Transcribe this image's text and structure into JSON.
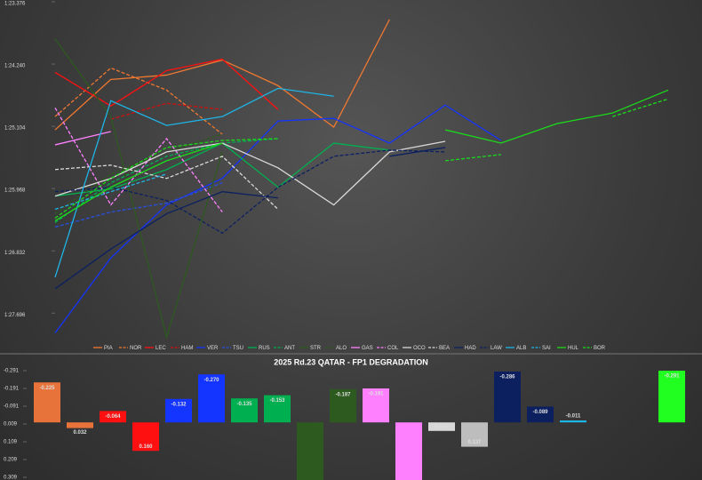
{
  "chart_data": [
    {
      "type": "line",
      "x": [
        1,
        2,
        3,
        4,
        5,
        6,
        7,
        8,
        9,
        10,
        11,
        12
      ],
      "xlim": [
        1,
        12
      ],
      "ylim": [
        83.376,
        88.1
      ],
      "y_reversed": true,
      "yticks": [
        {
          "value": 83.376,
          "label": "1:23.376"
        },
        {
          "value": 84.24,
          "label": "1:24.240"
        },
        {
          "value": 85.104,
          "label": "1:25.104"
        },
        {
          "value": 85.968,
          "label": "1:25.968"
        },
        {
          "value": 86.832,
          "label": "1:26.832"
        },
        {
          "value": 87.696,
          "label": "1:27.696"
        }
      ],
      "legend": "bottom",
      "series": [
        {
          "name": "PIA",
          "color": "#f07830",
          "dash": false,
          "values": [
            85.153,
            84.454,
            84.393,
            84.185,
            84.54,
            85.116,
            83.621,
            null,
            null,
            null,
            null,
            null
          ]
        },
        {
          "name": "NOR",
          "color": "#f07830",
          "dash": true,
          "values": [
            84.969,
            84.295,
            84.601,
            85.214,
            null,
            null,
            null,
            null,
            null,
            null,
            null,
            null
          ]
        },
        {
          "name": "LEC",
          "color": "#ff1010",
          "dash": false,
          "values": [
            84.356,
            84.822,
            84.332,
            84.173,
            84.871,
            null,
            null,
            null,
            null,
            null,
            null,
            null
          ]
        },
        {
          "name": "HAM",
          "color": "#d01010",
          "dash": true,
          "values": [
            null,
            85.006,
            84.785,
            84.871,
            null,
            null,
            null,
            null,
            null,
            null,
            null,
            null
          ]
        },
        {
          "name": "VER",
          "color": "#1434ff",
          "dash": false,
          "values": [
            87.972,
            86.93,
            86.195,
            85.827,
            85.03,
            84.994,
            85.337,
            84.81,
            85.3,
            null,
            null,
            null
          ]
        },
        {
          "name": "TSU",
          "color": "#2850e0",
          "dash": true,
          "values": [
            86.501,
            86.293,
            86.17,
            85.888,
            null,
            null,
            null,
            null,
            null,
            null,
            null,
            null
          ]
        },
        {
          "name": "RUS",
          "color": "#00b050",
          "dash": false,
          "values": [
            86.072,
            85.974,
            85.704,
            85.337,
            85.949,
            85.337,
            85.435,
            null,
            null,
            null,
            null,
            null
          ]
        },
        {
          "name": "ANT",
          "color": "#00b050",
          "dash": true,
          "values": [
            86.44,
            85.888,
            85.52,
            85.337,
            85.275,
            null,
            null,
            null,
            null,
            null,
            null,
            null
          ]
        },
        {
          "name": "STR",
          "color": "#2d5a1e",
          "dash": false,
          "values": [
            83.891,
            84.969,
            88.033,
            85.459,
            null,
            null,
            null,
            null,
            null,
            null,
            null,
            null
          ]
        },
        {
          "name": "ALO",
          "color": "#2d5a1e",
          "dash": true,
          "values": [
            86.317,
            85.766,
            85.459,
            85.214,
            null,
            null,
            null,
            null,
            null,
            null,
            null,
            null
          ]
        },
        {
          "name": "GAS",
          "color": "#ff80ff",
          "dash": false,
          "values": [
            85.361,
            85.177,
            null,
            null,
            null,
            null,
            null,
            null,
            null,
            null,
            null,
            null
          ]
        },
        {
          "name": "COL",
          "color": "#ff80ff",
          "dash": true,
          "values": [
            84.847,
            86.195,
            85.275,
            86.293,
            null,
            null,
            null,
            null,
            null,
            null,
            null,
            null
          ]
        },
        {
          "name": "OCO",
          "color": "#d8d8d8",
          "dash": false,
          "values": [
            86.072,
            85.827,
            85.459,
            85.337,
            85.68,
            86.195,
            85.459,
            85.312,
            null,
            null,
            null,
            null
          ]
        },
        {
          "name": "BEA",
          "color": "#d8d8d8",
          "dash": true,
          "values": [
            85.704,
            85.643,
            85.827,
            85.52,
            86.256,
            null,
            null,
            null,
            null,
            null,
            null,
            null
          ]
        },
        {
          "name": "HAD",
          "color": "#0c2060",
          "dash": false,
          "values": [
            87.359,
            86.807,
            86.317,
            86.011,
            86.097,
            null,
            85.52,
            85.398,
            null,
            null,
            null,
            null
          ]
        },
        {
          "name": "LAW",
          "color": "#0c2060",
          "dash": true,
          "values": [
            86.011,
            85.949,
            86.133,
            86.587,
            85.949,
            85.52,
            85.435,
            85.459,
            null,
            null,
            null,
            null
          ]
        },
        {
          "name": "ALB",
          "color": "#1eb4e6",
          "dash": false,
          "values": [
            87.199,
            84.749,
            85.092,
            84.969,
            84.577,
            84.687,
            null,
            null,
            null,
            null,
            null,
            null
          ]
        },
        {
          "name": "SAI",
          "color": "#1eb4e6",
          "dash": true,
          "values": [
            86.256,
            86.011,
            85.766,
            null,
            null,
            null,
            null,
            null,
            null,
            null,
            null,
            null
          ]
        },
        {
          "name": "HUL",
          "color": "#1adc1a",
          "dash": false,
          "values": [
            86.415,
            85.949,
            85.582,
            85.337,
            null,
            null,
            null,
            85.153,
            85.337,
            85.067,
            84.92,
            84.601
          ]
        },
        {
          "name": "BOR",
          "color": "#1adc1a",
          "dash": true,
          "values": [
            86.378,
            85.827,
            85.398,
            85.3,
            85.275,
            null,
            null,
            85.582,
            85.496,
            null,
            84.969,
            84.724
          ]
        }
      ]
    },
    {
      "type": "bar",
      "title": "2025 Rd.23 QATAR - FP1 DEGRADATION",
      "categories": [
        "PIA",
        "NOR",
        "LEC",
        "HAM",
        "VER",
        "TSU",
        "RUS",
        "ANT",
        "STR",
        "ALO",
        "GAS",
        "COL",
        "OCO",
        "BEA",
        "HAD",
        "LAW",
        "ALB",
        "SAI",
        "HUL",
        "BOR"
      ],
      "values": [
        -0.225,
        0.032,
        -0.064,
        0.16,
        -0.132,
        -0.27,
        -0.135,
        -0.153,
        0.35,
        -0.187,
        -0.191,
        0.35,
        0.048,
        0.137,
        -0.286,
        -0.089,
        -0.011,
        null,
        null,
        -0.291
      ],
      "value_labels": [
        "-0.225",
        "0.032",
        "-0.064",
        "0.160",
        "-0.132",
        "-0.270",
        "-0.135",
        "-0.153",
        null,
        "-0.187",
        "-0.191",
        null,
        "0.048",
        "0.137",
        "-0.286",
        "-0.089",
        "-0.011",
        null,
        null,
        "-0.291"
      ],
      "colors": [
        "#e8733a",
        "#e8733a",
        "#ff1010",
        "#ff1010",
        "#1434ff",
        "#1434ff",
        "#00b050",
        "#00b050",
        "#2d5a1e",
        "#2d5a1e",
        "#ff80ff",
        "#ff80ff",
        "#d8d8d8",
        "#bdbdbd",
        "#0c2060",
        "#0c2060",
        "#1eb4e6",
        "#1eb4e6",
        "#1adc1a",
        "#20ff20"
      ],
      "ylim": [
        -0.311,
        0.324
      ],
      "y_reversed": true,
      "yticks": [
        -0.291,
        -0.191,
        -0.091,
        0.009,
        0.109,
        0.209,
        0.309
      ]
    }
  ]
}
